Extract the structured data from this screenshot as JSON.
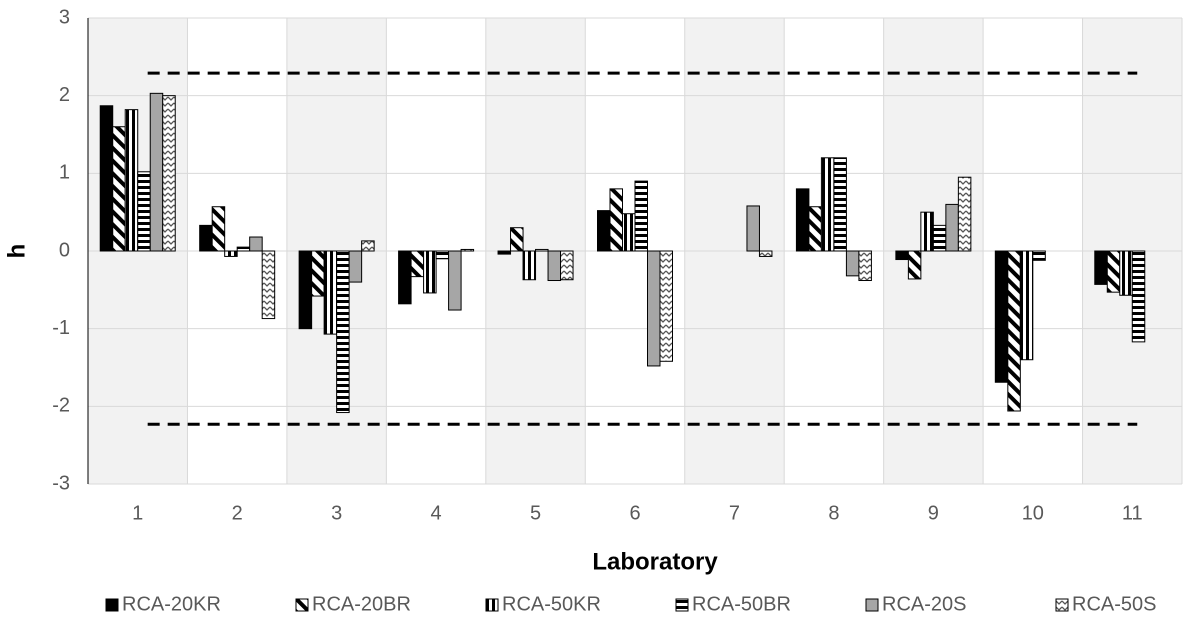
{
  "chart_data": {
    "type": "bar",
    "y_label": "h",
    "x_label": "Laboratory",
    "categories": [
      "1",
      "2",
      "3",
      "4",
      "5",
      "6",
      "7",
      "8",
      "9",
      "10",
      "11"
    ],
    "series": [
      {
        "name": "RCA-20KR",
        "color": "#000000",
        "pattern": "solid",
        "values": [
          1.87,
          0.33,
          -1.0,
          -0.68,
          -0.04,
          0.52,
          null,
          0.8,
          -0.11,
          -1.69,
          -0.43
        ]
      },
      {
        "name": "RCA-20BR",
        "color": "#000000",
        "pattern": "diagonal",
        "values": [
          1.6,
          0.57,
          -0.58,
          -0.33,
          0.3,
          0.8,
          null,
          0.57,
          -0.36,
          -2.06,
          -0.53
        ]
      },
      {
        "name": "RCA-50KR",
        "color": "#000000",
        "pattern": "vertical",
        "values": [
          1.82,
          -0.07,
          -1.07,
          -0.54,
          -0.37,
          0.48,
          null,
          1.2,
          0.5,
          -1.4,
          -0.57
        ]
      },
      {
        "name": "RCA-50BR",
        "color": "#000000",
        "pattern": "horizontal",
        "values": [
          1.02,
          0.05,
          -2.08,
          -0.1,
          0.02,
          0.9,
          null,
          1.2,
          0.33,
          -0.12,
          -1.17
        ]
      },
      {
        "name": "RCA-20S",
        "color": "#a6a6a6",
        "pattern": "solid",
        "values": [
          2.03,
          0.18,
          -0.4,
          -0.76,
          -0.38,
          -1.48,
          0.58,
          -0.32,
          0.6,
          null,
          null
        ]
      },
      {
        "name": "RCA-50S",
        "color": "#7f7f7f",
        "pattern": "zigzag",
        "values": [
          2.0,
          -0.87,
          0.13,
          0.02,
          -0.37,
          -1.42,
          -0.07,
          -0.38,
          0.95,
          null,
          null
        ]
      }
    ],
    "reference_lines": [
      2.29,
      -2.23
    ],
    "ylim": [
      -3,
      3
    ],
    "yticks": [
      -3,
      -2,
      -1,
      0,
      1,
      2,
      3
    ],
    "grid": true,
    "legend": "bottom"
  }
}
